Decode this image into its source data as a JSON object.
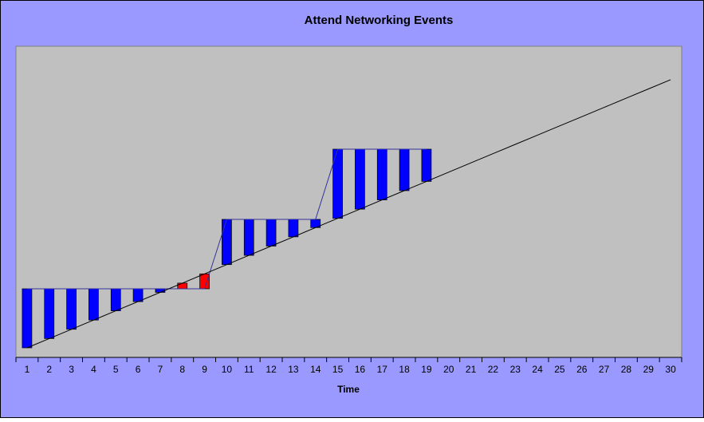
{
  "chart_data": {
    "type": "floating-bar-line",
    "title": "Attend Networking Events",
    "x_label": "Time",
    "categories": [
      "1",
      "2",
      "3",
      "4",
      "5",
      "6",
      "7",
      "8",
      "9",
      "10",
      "11",
      "12",
      "13",
      "14",
      "15",
      "16",
      "17",
      "18",
      "19",
      "20",
      "21",
      "22",
      "23",
      "24",
      "25",
      "26",
      "27",
      "28",
      "29",
      "30"
    ],
    "series": [
      {
        "color": "#333399",
        "values": [
          8.6,
          8.6,
          8.6,
          8.6,
          8.6,
          8.6,
          8.6,
          8.6,
          8.6,
          17.3,
          17.3,
          17.3,
          17.3,
          17.3,
          26.1,
          26.1,
          26.1,
          26.1,
          26.1,
          null,
          null,
          null,
          null,
          null,
          null,
          null,
          null,
          null,
          null,
          null
        ]
      },
      {
        "color": "#000000",
        "values": [
          1.2,
          2.36,
          3.52,
          4.68,
          5.84,
          6.99,
          8.15,
          9.31,
          10.47,
          11.63,
          12.79,
          13.95,
          15.11,
          16.27,
          17.43,
          18.58,
          19.74,
          20.9,
          22.06,
          23.22,
          24.38,
          25.54,
          26.7,
          27.86,
          29.02,
          30.17,
          31.33,
          32.49,
          33.65,
          34.81
        ]
      }
    ],
    "up_color": "#0000ff",
    "down_color": "#ff0000",
    "ylim": [
      0,
      39
    ]
  }
}
